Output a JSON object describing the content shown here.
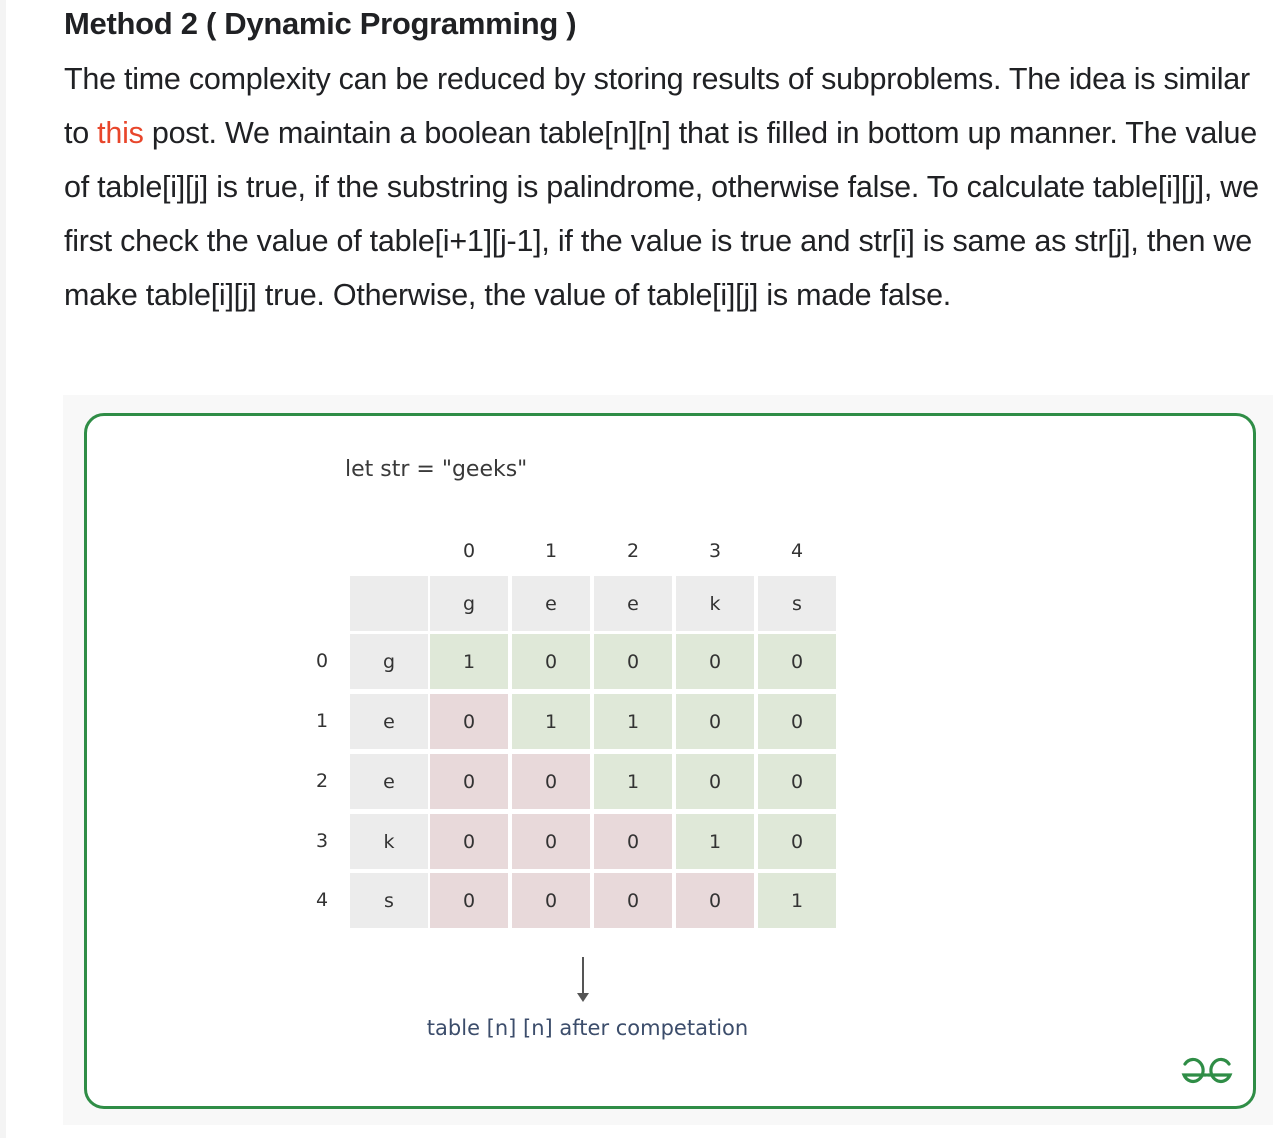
{
  "heading": "Method 2 ( Dynamic Programming )",
  "paragraph": {
    "before_link": "The time complexity can be reduced by storing results of subproblems. The idea is similar to ",
    "link_text": "this",
    "after_link": " post. We maintain a boolean table[n][n] that is filled in bottom up man­ner. The value of table[i][j] is true, if the substring is palindrome, otherwise false. To calculate table[i][j], we first check the value of table[i+1][j-1], if the value is true and str[i] is same as str[j], then we make table[i][j] true. Otherwise, the value of table[i][j] is made false."
  },
  "figure": {
    "code_line": "let str =  \"geeks\"",
    "column_indices": [
      "0",
      "1",
      "2",
      "3",
      "4"
    ],
    "column_chars": [
      "g",
      "e",
      "e",
      "k",
      "s"
    ],
    "row_indices": [
      "0",
      "1",
      "2",
      "3",
      "4"
    ],
    "row_chars": [
      "g",
      "e",
      "e",
      "k",
      "s"
    ],
    "table": [
      [
        "1",
        "0",
        "0",
        "0",
        "0"
      ],
      [
        "0",
        "1",
        "1",
        "0",
        "0"
      ],
      [
        "0",
        "0",
        "1",
        "0",
        "0"
      ],
      [
        "0",
        "0",
        "0",
        "1",
        "0"
      ],
      [
        "0",
        "0",
        "0",
        "0",
        "1"
      ]
    ],
    "caption": "table [n] [n] after competation",
    "colors": {
      "upper_cell": "#dfe8d8",
      "lower_cell": "#e8d9da",
      "header_cell": "#ececec",
      "frame": "#2f8d46",
      "link": "#e8462b"
    },
    "logo_icon": "gfg-logo-icon"
  }
}
